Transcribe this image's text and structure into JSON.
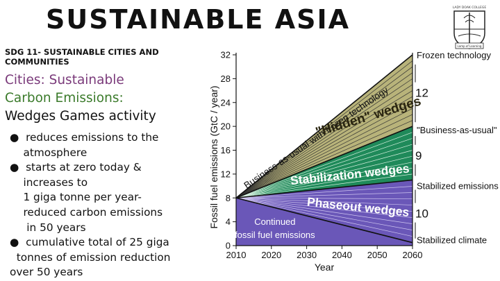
{
  "slide": {
    "title": "SUSTAINABLE ASIA",
    "sdg_line1": "SDG 11- SUSTAINABLE  CITIES AND",
    "sdg_line2": "COMMUNITIES",
    "heading_line1": "Cities: Sustainable",
    "heading_line2": "Carbon Emissions:",
    "heading_line3": "Wedges Games activity",
    "bullets": [
      "●  reduces emissions to the",
      "    atmosphere",
      "●  starts at zero today &",
      "    increases to",
      "    1 giga tonne per year-",
      "    reduced carbon emissions",
      "     in 50 years",
      "●  cumulative total of 25 giga",
      "  tonnes of emission reduction",
      "over 50 years"
    ],
    "logo": {
      "top_text": "LADY DOAK COLLEGE",
      "bottom_text": "Lamp of Learning"
    }
  },
  "chart_data": {
    "type": "area",
    "xlabel": "Year",
    "ylabel": "Fossil fuel emissions (GtC / year)",
    "x_ticks": [
      "2010",
      "2020",
      "2030",
      "2040",
      "2050",
      "2060"
    ],
    "y_ticks": [
      "0",
      "4",
      "8",
      "12",
      "16",
      "20",
      "24",
      "28",
      "32"
    ],
    "xlim": [
      2010,
      2060
    ],
    "ylim": [
      0,
      32
    ],
    "series": [
      {
        "name": "Frozen technology",
        "x": [
          2010,
          2060
        ],
        "y": [
          8,
          32
        ]
      },
      {
        "name": "\"Business-as-usual\"",
        "x": [
          2010,
          2060
        ],
        "y": [
          8,
          20
        ]
      },
      {
        "name": "Stabilized emissions",
        "x": [
          2010,
          2060
        ],
        "y": [
          8,
          11
        ]
      },
      {
        "name": "Stabilized climate",
        "x": [
          2010,
          2060
        ],
        "y": [
          8,
          0.5
        ]
      }
    ],
    "wedge_labels": [
      "Business-as-usual with frozen technology",
      "\"Hidden\" wedges",
      "Stabilization wedges",
      "Phaseout wedges",
      "Continued",
      "fossil fuel emissions"
    ],
    "wedge_counts": [
      "12",
      "9",
      "10"
    ],
    "colors": {
      "hidden": "#b8b37a",
      "stabilization": "#1f8a5a",
      "phaseout": "#6a57b8",
      "stroke": "#111111"
    }
  }
}
